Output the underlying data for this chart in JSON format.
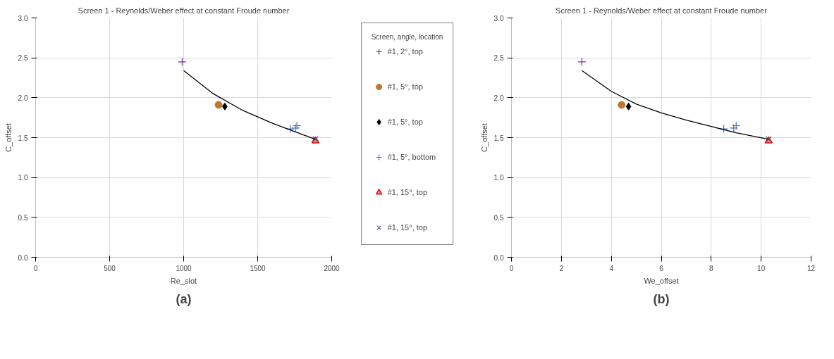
{
  "chart_data": [
    {
      "type": "scatter",
      "title": "Screen 1 - Reynolds/Weber effect at constant Froude number",
      "xlabel": "Re_slot",
      "ylabel": "C_offset",
      "legend_title": "Screen, angle, location",
      "legend": "right",
      "grid": true,
      "xlim": [
        0,
        2000
      ],
      "xticks": [
        0,
        500,
        1000,
        1500,
        2000
      ],
      "ylim": [
        0,
        3
      ],
      "yticks": [
        {
          "value": 0,
          "label": "0.0"
        },
        {
          "value": 0.5,
          "label": "0.5"
        },
        {
          "value": 1,
          "label": "1.0"
        },
        {
          "value": 1.5,
          "label": "1.5"
        },
        {
          "value": 2,
          "label": "2.0"
        },
        {
          "value": 2.5,
          "label": "2.5"
        },
        {
          "value": 3,
          "label": "3.0"
        }
      ],
      "annotations": [
        "(a)"
      ],
      "series": [
        {
          "name": "#1, 2°, top",
          "color": "#7030a0",
          "marker": "cross",
          "x": [
            990
          ],
          "values": [
            2.45
          ]
        },
        {
          "name": "#1, 5°, top",
          "color": "#c07830",
          "marker": "circle",
          "x": [
            1236
          ],
          "values": [
            1.91
          ]
        },
        {
          "name": "#1, 5°, top",
          "color": "#000000",
          "marker": "diamond",
          "x": [
            1278
          ],
          "values": [
            1.89
          ]
        },
        {
          "name": "#1, 5°, bottom",
          "color": "#4472c4",
          "marker": "cross",
          "x": [
            1720,
            1755,
            1765
          ],
          "values": [
            1.61,
            1.62,
            1.65
          ]
        },
        {
          "name": "#1, 15°, top",
          "color": "#ff0000",
          "marker": "triangle",
          "x": [
            1890
          ],
          "values": [
            1.46
          ]
        },
        {
          "name": "#1, 15°, top",
          "color": "#604a7b",
          "marker": "x",
          "x": [
            1890
          ],
          "values": [
            1.48
          ]
        },
        {
          "type": "line",
          "color": "#000000",
          "x": [
            1000,
            1200,
            1400,
            1600,
            1800,
            1890
          ],
          "values": [
            2.34,
            2.05,
            1.84,
            1.68,
            1.54,
            1.48
          ]
        }
      ]
    },
    {
      "type": "scatter",
      "title": "Screen 1 - Reynolds/Weber effect at constant Froude number",
      "xlabel": "We_offset",
      "ylabel": "C_offset",
      "grid": true,
      "xlim": [
        0,
        12
      ],
      "xticks": [
        0,
        2,
        4,
        6,
        8,
        10,
        12
      ],
      "ylim": [
        0,
        3
      ],
      "yticks": [
        {
          "value": 0,
          "label": "0.0"
        },
        {
          "value": 0.5,
          "label": "0.5"
        },
        {
          "value": 1,
          "label": "1.0"
        },
        {
          "value": 1.5,
          "label": "1.5"
        },
        {
          "value": 2,
          "label": "2.0"
        },
        {
          "value": 2.5,
          "label": "2.5"
        },
        {
          "value": 3,
          "label": "3.0"
        }
      ],
      "annotations": [
        "(b)"
      ],
      "series": [
        {
          "color": "#7030a0",
          "marker": "cross",
          "x": [
            2.82
          ],
          "values": [
            2.45
          ]
        },
        {
          "color": "#c07830",
          "marker": "circle",
          "x": [
            4.41
          ],
          "values": [
            1.91
          ]
        },
        {
          "color": "#000000",
          "marker": "diamond",
          "x": [
            4.69
          ],
          "values": [
            1.89
          ]
        },
        {
          "color": "#4472c4",
          "marker": "cross",
          "x": [
            8.5,
            8.9,
            9.0
          ],
          "values": [
            1.61,
            1.62,
            1.65
          ]
        },
        {
          "color": "#ff0000",
          "marker": "triangle",
          "x": [
            10.3
          ],
          "values": [
            1.46
          ]
        },
        {
          "color": "#604a7b",
          "marker": "x",
          "x": [
            10.3
          ],
          "values": [
            1.48
          ]
        },
        {
          "type": "line",
          "color": "#000000",
          "x": [
            2.82,
            4,
            5,
            6,
            7,
            8,
            9,
            10.3
          ],
          "values": [
            2.34,
            2.08,
            1.92,
            1.81,
            1.72,
            1.64,
            1.56,
            1.48
          ]
        }
      ]
    }
  ]
}
